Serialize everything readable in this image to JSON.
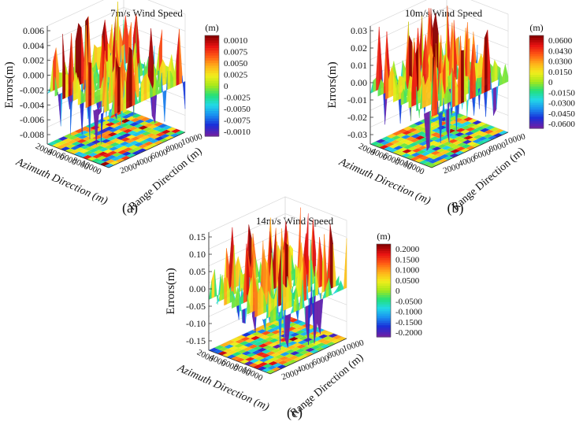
{
  "chart_data": [
    {
      "type": "surface3d",
      "panel_label": "(a)",
      "title": "7m/s Wind Speed",
      "zlabel": "Errors(m)",
      "xlabel": "Azimuth Direction (m)",
      "ylabel": "Range Direction (m)",
      "z_ticks": [
        "0.006",
        "0.004",
        "0.002",
        "0.000",
        "-0.002",
        "-0.004",
        "-0.006",
        "-0.008"
      ],
      "x_ticks": [
        "2000",
        "4000",
        "6000",
        "8000",
        "10000"
      ],
      "y_ticks": [
        "10000",
        "8000",
        "6000",
        "4000",
        "2000"
      ],
      "zlim": [
        -0.008,
        0.006
      ],
      "colorbar": {
        "unit": "(m)",
        "ticks": [
          "0.0010",
          "0.0075",
          "0.0050",
          "0.0025",
          "0",
          "-0.0025",
          "-0.0050",
          "-0.0075",
          "-0.0010"
        ]
      }
    },
    {
      "type": "surface3d",
      "panel_label": "(b)",
      "title": "10m/s Wind Speed",
      "zlabel": "Errors(m)",
      "xlabel": "Azimuth Direction (m)",
      "ylabel": "Range Direction (m)",
      "z_ticks": [
        "0.03",
        "0.02",
        "0.01",
        "0.00",
        "-0.01",
        "-0.02",
        "-0.03"
      ],
      "x_ticks": [
        "2000",
        "4000",
        "6000",
        "8000",
        "10000"
      ],
      "y_ticks": [
        "10000",
        "8000",
        "6000",
        "4000",
        "2000"
      ],
      "zlim": [
        -0.03,
        0.03
      ],
      "colorbar": {
        "unit": "(m)",
        "ticks": [
          "0.0600",
          "0.0430",
          "0.0300",
          "0.0150",
          "0",
          "-0.0150",
          "-0.0300",
          "-0.0450",
          "-0.0600"
        ]
      }
    },
    {
      "type": "surface3d",
      "panel_label": "(c)",
      "title": "14m/s Wind Speed",
      "zlabel": "Errors(m)",
      "xlabel": "Azimuth Direction (m)",
      "ylabel": "Range Direction (m)",
      "z_ticks": [
        "0.15",
        "0.10",
        "0.05",
        "0.00",
        "-0.05",
        "-0.10",
        "-0.15"
      ],
      "x_ticks": [
        "2000",
        "4000",
        "6000",
        "8000",
        "10000"
      ],
      "y_ticks": [
        "10000",
        "8000",
        "6000",
        "4000",
        "2000"
      ],
      "zlim": [
        -0.15,
        0.15
      ],
      "colorbar": {
        "unit": "(m)",
        "ticks": [
          "0.2000",
          "0.1500",
          "0.1000",
          "0.0500",
          "0",
          "-0.0500",
          "-0.1000",
          "-0.1500",
          "-0.2000"
        ]
      }
    }
  ],
  "colors": {
    "colormap": [
      "#6a1fa8",
      "#1a2fd8",
      "#1a8ff0",
      "#22d8e8",
      "#22e07a",
      "#a6e81a",
      "#f2ee1c",
      "#ffb01a",
      "#ff5a14",
      "#e81212",
      "#8a0000"
    ],
    "axis": "#333333",
    "grid": "#d9d9d9"
  }
}
